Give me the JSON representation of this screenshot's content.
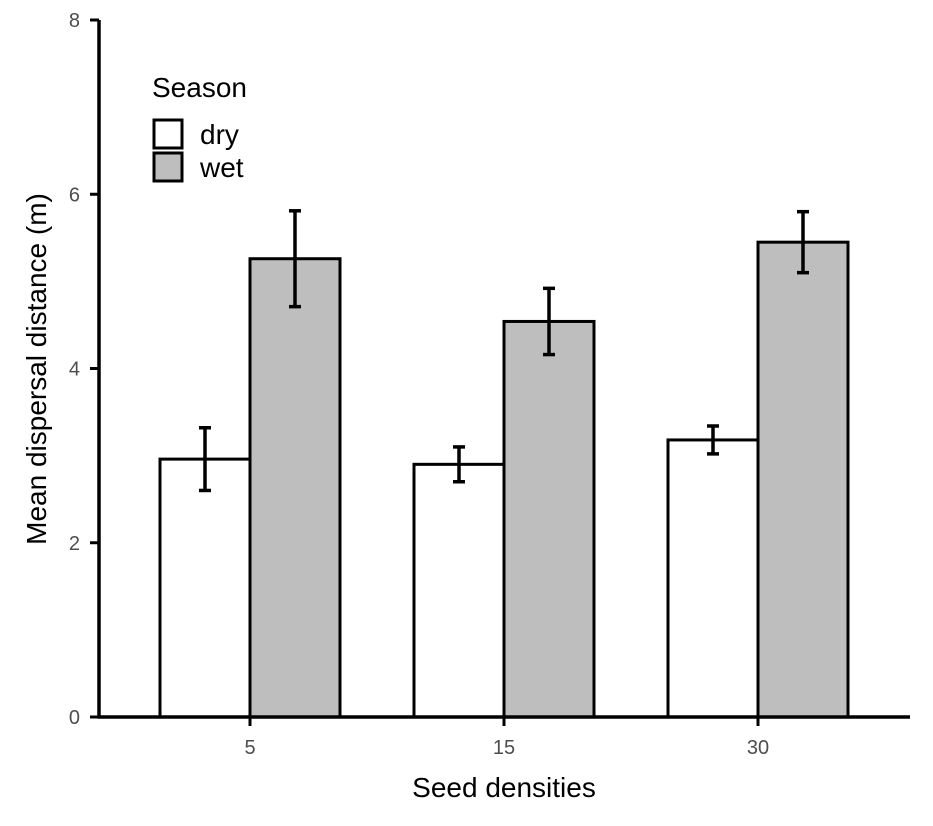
{
  "chart_data": {
    "type": "bar",
    "xlabel": "Seed densities",
    "ylabel": "Mean dispersal distance (m)",
    "ylim": [
      0,
      8
    ],
    "yticks": [
      0,
      2,
      4,
      6,
      8
    ],
    "categories": [
      "5",
      "15",
      "30"
    ],
    "series": [
      {
        "name": "dry",
        "color": "#ffffff",
        "values": [
          2.96,
          2.9,
          3.18
        ],
        "err_low": [
          2.6,
          2.7,
          3.02
        ],
        "err_high": [
          3.32,
          3.1,
          3.34
        ]
      },
      {
        "name": "wet",
        "color": "#bebebe",
        "values": [
          5.26,
          4.54,
          5.45
        ],
        "err_low": [
          4.71,
          4.16,
          5.1
        ],
        "err_high": [
          5.81,
          4.92,
          5.8
        ]
      }
    ],
    "legend": {
      "title": "Season",
      "position": "top-left"
    },
    "grid": false
  }
}
